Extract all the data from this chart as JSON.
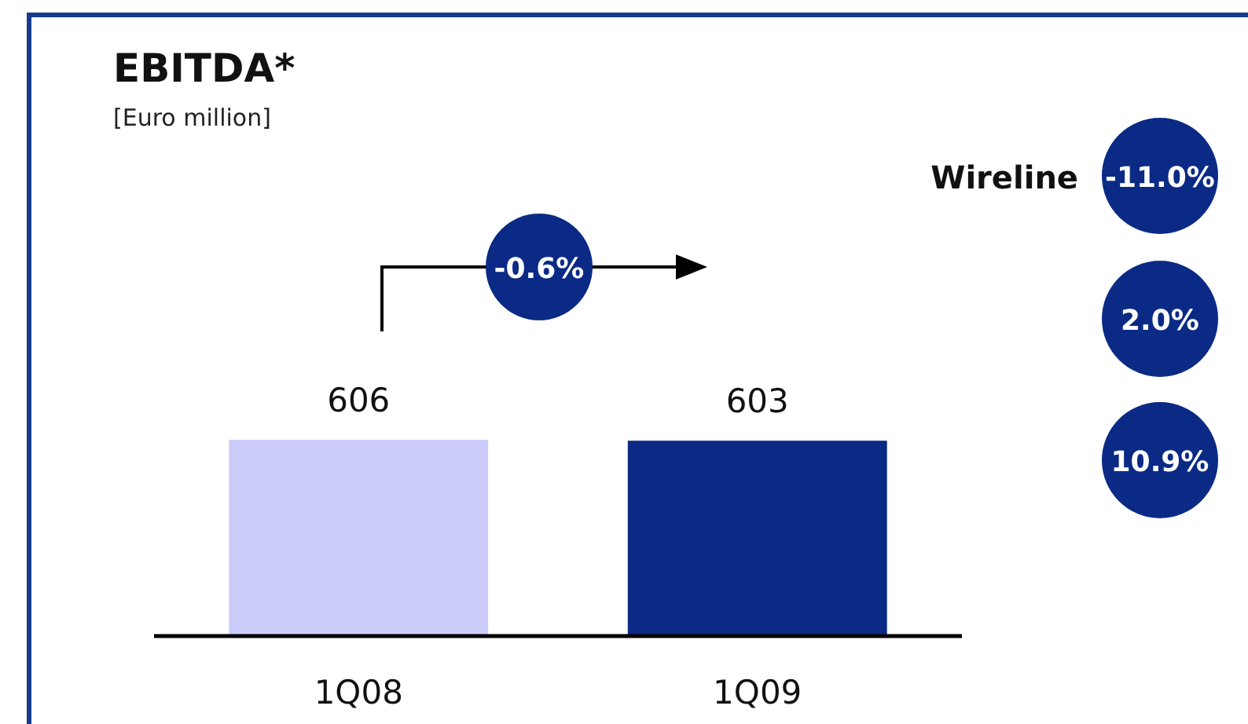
{
  "chart_data": {
    "type": "bar",
    "title": "EBITDA*",
    "subtitle": "[Euro million]",
    "categories": [
      "1Q08",
      "1Q09"
    ],
    "values": [
      606,
      603
    ],
    "colors": [
      "#ccccfa",
      "#0a2a85"
    ],
    "data_labels": true,
    "annotations": [
      "-0.6%",
      "Wireline",
      "-11.0%",
      "2.0%",
      "10.9%"
    ]
  }
}
